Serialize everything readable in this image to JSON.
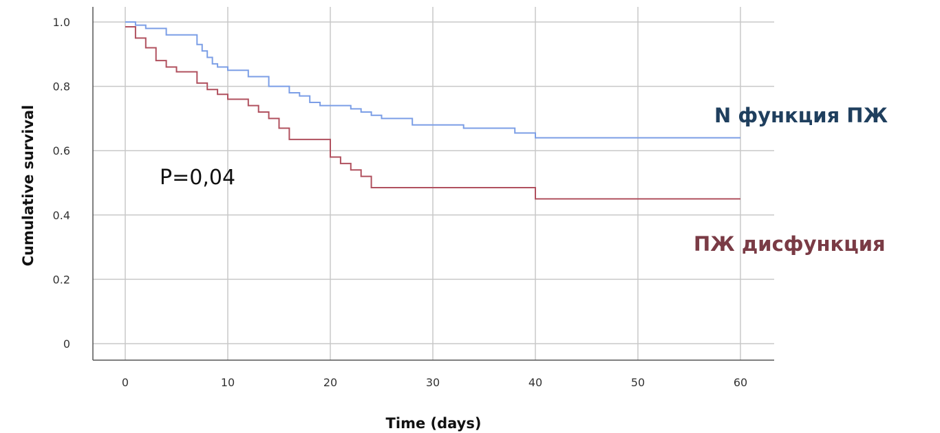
{
  "chart_data": {
    "type": "line",
    "title": "",
    "xlabel": "Time (days)",
    "ylabel": "Cumulative survival",
    "xlim": [
      0,
      60
    ],
    "ylim": [
      0,
      1.0
    ],
    "x_ticks": [
      0,
      10,
      20,
      30,
      40,
      50,
      60
    ],
    "y_ticks": [
      0,
      0.2,
      0.4,
      0.6,
      0.8,
      1.0
    ],
    "x_tick_labels": [
      "0",
      "10",
      "20",
      "30",
      "40",
      "50",
      "60"
    ],
    "y_tick_labels": [
      "0",
      "0.2",
      "0.4",
      "0.6",
      "0.8",
      "1.0"
    ],
    "grid": true,
    "step": true,
    "annotation": "P=0,04",
    "series": [
      {
        "name": "N функция ПЖ",
        "color": "#7b9ee6",
        "label_color": "#1f3f5e",
        "x": [
          0,
          1,
          2,
          4,
          7,
          7.5,
          8,
          8.5,
          9,
          10,
          12,
          14,
          16,
          17,
          18,
          19,
          20,
          22,
          23,
          24,
          25,
          28,
          31,
          33,
          38,
          40,
          60
        ],
        "y": [
          1.0,
          0.99,
          0.98,
          0.96,
          0.93,
          0.91,
          0.89,
          0.87,
          0.86,
          0.85,
          0.83,
          0.8,
          0.78,
          0.77,
          0.75,
          0.74,
          0.74,
          0.73,
          0.72,
          0.71,
          0.7,
          0.68,
          0.68,
          0.67,
          0.655,
          0.64,
          0.64
        ]
      },
      {
        "name": "ПЖ дисфункция",
        "color": "#b0505e",
        "label_color": "#7a3b45",
        "x": [
          0,
          1,
          2,
          3,
          4,
          5,
          7,
          8,
          9,
          10,
          12,
          13,
          14,
          15,
          16,
          20,
          21,
          22,
          23,
          24,
          40,
          60
        ],
        "y": [
          0.985,
          0.95,
          0.92,
          0.88,
          0.86,
          0.845,
          0.81,
          0.79,
          0.775,
          0.76,
          0.74,
          0.72,
          0.7,
          0.67,
          0.635,
          0.58,
          0.56,
          0.54,
          0.52,
          0.485,
          0.45,
          0.45
        ]
      }
    ]
  }
}
